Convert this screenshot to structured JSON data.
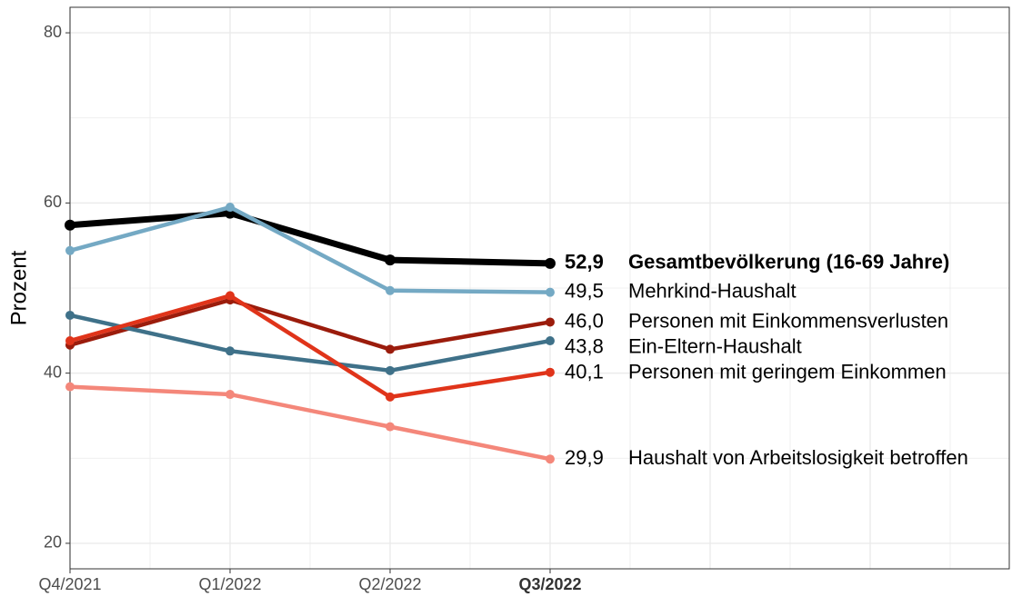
{
  "chart_data": {
    "type": "line",
    "y_label": "Prozent",
    "categories": [
      "Q4/2021",
      "Q1/2022",
      "Q2/2022",
      "Q3/2022"
    ],
    "highlight_category": 3,
    "ylim": [
      17,
      83
    ],
    "yticks": [
      20,
      40,
      60,
      80
    ],
    "grid": true,
    "series": [
      {
        "name": "Gesamtbevölkerung (16-69 Jahre)",
        "color": "#000000",
        "bold": true,
        "values": [
          57.4,
          58.8,
          53.3,
          52.9
        ],
        "value_labels": [
          null,
          null,
          null,
          "52,9"
        ]
      },
      {
        "name": "Mehrkind-Haushalt",
        "color": "#74a9c4",
        "values": [
          54.4,
          59.5,
          49.7,
          49.5
        ],
        "value_labels": [
          null,
          null,
          null,
          "49,5"
        ]
      },
      {
        "name": "Personen mit Einkommensverlusten",
        "color": "#9b1c0c",
        "values": [
          43.3,
          48.6,
          42.8,
          46.0
        ],
        "value_labels": [
          null,
          null,
          null,
          "46,0"
        ]
      },
      {
        "name": "Ein-Eltern-Haushalt",
        "color": "#3f7189",
        "values": [
          46.8,
          42.6,
          40.3,
          43.8
        ],
        "value_labels": [
          null,
          null,
          null,
          "43,8"
        ]
      },
      {
        "name": "Personen mit geringem Einkommen",
        "color": "#e0341a",
        "values": [
          43.8,
          49.1,
          37.2,
          40.1
        ],
        "value_labels": [
          null,
          null,
          null,
          "40,1"
        ]
      },
      {
        "name": "Haushalt von Arbeitslosigkeit betroffen",
        "color": "#f4877a",
        "values": [
          38.4,
          37.5,
          33.7,
          29.9
        ],
        "value_labels": [
          null,
          null,
          null,
          "29,9"
        ]
      }
    ]
  }
}
